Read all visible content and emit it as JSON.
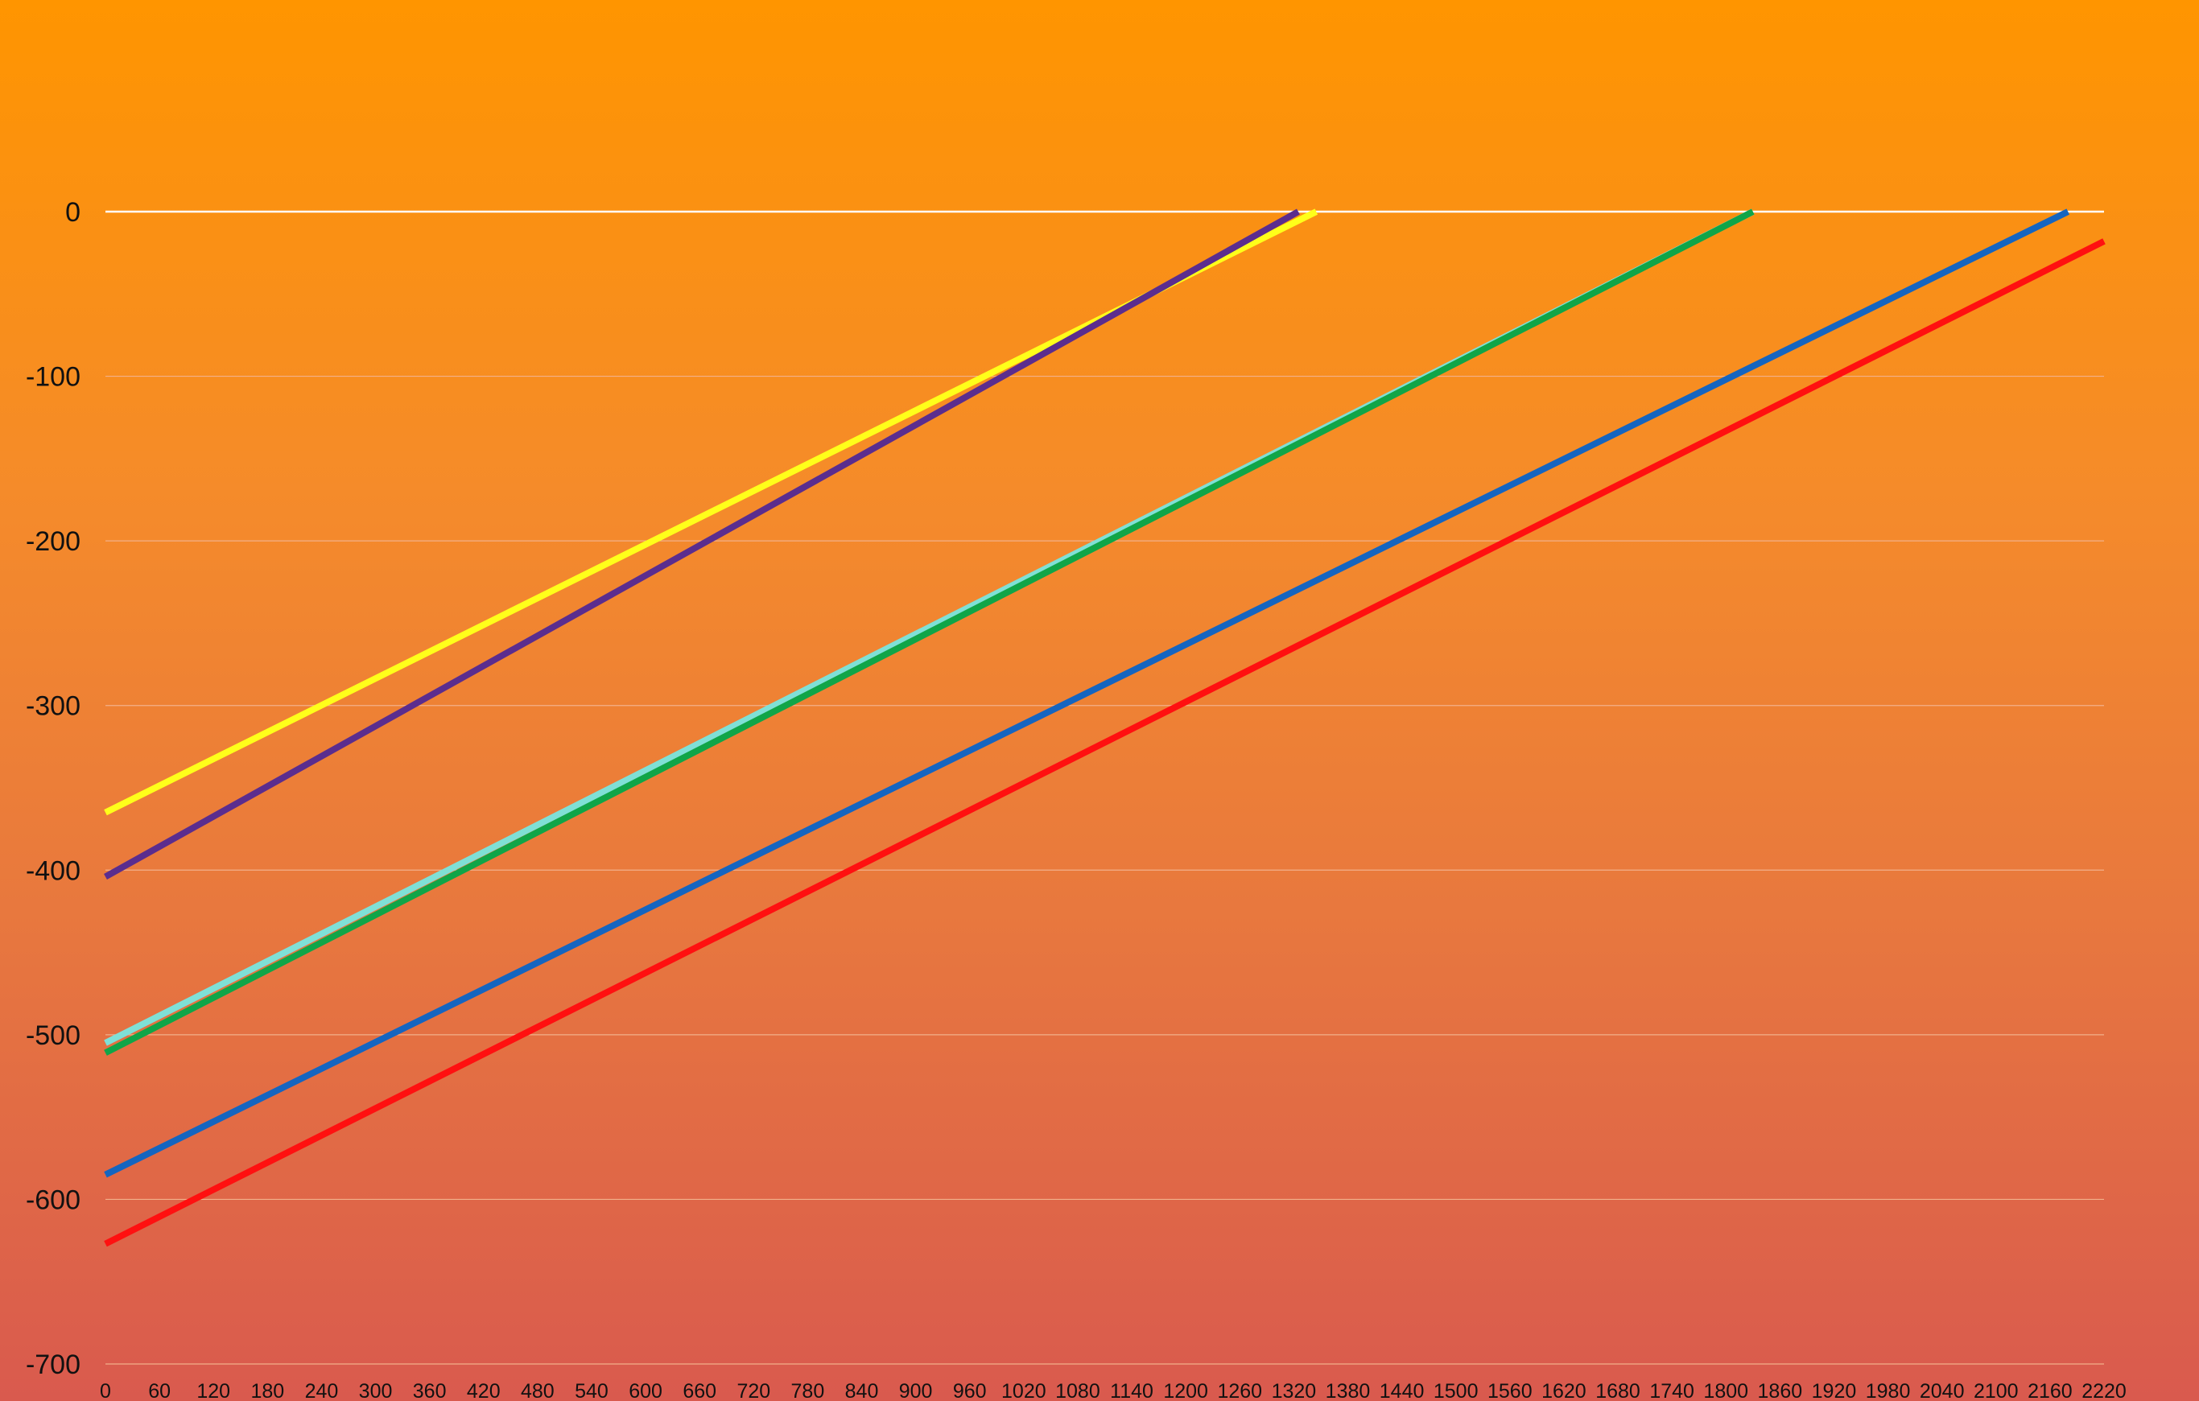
{
  "chart_data": {
    "type": "line",
    "title": "",
    "xlabel": "",
    "ylabel": "",
    "xlim": [
      0,
      2220
    ],
    "ylim": [
      -700,
      0
    ],
    "x_ticks": [
      0,
      60,
      120,
      180,
      240,
      300,
      360,
      420,
      480,
      540,
      600,
      660,
      720,
      780,
      840,
      900,
      960,
      1020,
      1080,
      1140,
      1200,
      1260,
      1320,
      1380,
      1440,
      1500,
      1560,
      1620,
      1680,
      1740,
      1800,
      1860,
      1920,
      1980,
      2040,
      2100,
      2160,
      2220
    ],
    "x_tick_labels": [
      "0",
      "60",
      "120",
      "180",
      "240",
      "300",
      "360",
      "420",
      "480",
      "540",
      "600",
      "660",
      "720",
      "780",
      "840",
      "900",
      "960",
      "1020",
      "1080",
      "1140",
      "1200",
      "1260",
      "1320",
      "1380",
      "1440",
      "1500",
      "1560",
      "1620",
      "1680",
      "1740",
      "1800",
      "1860",
      "1920",
      "1980",
      "2040",
      "2100",
      "2160",
      "2220"
    ],
    "y_ticks": [
      0,
      -100,
      -200,
      -300,
      -400,
      -500,
      -600,
      -700
    ],
    "y_tick_labels": [
      "0",
      "-100",
      "-200",
      "-300",
      "-400",
      "-500",
      "-600",
      "-700"
    ],
    "grid": true,
    "legend": "none",
    "series": [
      {
        "color": "#ffff1a",
        "x": [
          0,
          1345
        ],
        "y": [
          -365,
          0
        ]
      },
      {
        "color": "#5b2d8e",
        "x": [
          0,
          1325
        ],
        "y": [
          -404,
          0
        ]
      },
      {
        "color": "#7fe0d6",
        "x": [
          0,
          1830
        ],
        "y": [
          -505,
          0
        ]
      },
      {
        "color": "#10a548",
        "x": [
          0,
          1830
        ],
        "y": [
          -511,
          0
        ]
      },
      {
        "color": "#1565c0",
        "x": [
          0,
          2180
        ],
        "y": [
          -585,
          0
        ]
      },
      {
        "color": "#ff1010",
        "x": [
          0,
          2220
        ],
        "y": [
          -627,
          -18
        ]
      }
    ]
  },
  "style": {
    "zero_line_color": "#ffffff",
    "grid_color": "#f2b08a"
  }
}
